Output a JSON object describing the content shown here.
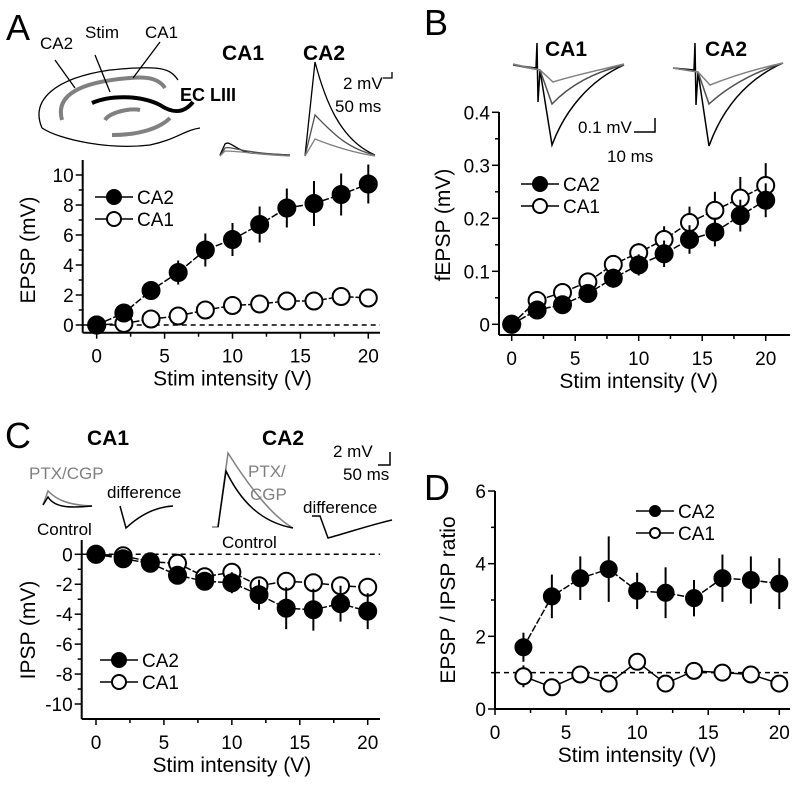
{
  "panels": {
    "A": {
      "letter": "A",
      "schematic": {
        "ca2": "CA2",
        "stim": "Stim",
        "ca1": "CA1",
        "ec": "EC LIII"
      },
      "trace_titles": [
        "CA1",
        "CA2"
      ],
      "scale_v": "2 mV",
      "scale_t": "50 ms"
    },
    "B": {
      "letter": "B",
      "trace_titles": [
        "CA1",
        "CA2"
      ],
      "scale_v": "0.1 mV",
      "scale_t": "10 ms"
    },
    "C": {
      "letter": "C",
      "trace_titles": [
        "CA1",
        "CA2"
      ],
      "scale_v": "2 mV",
      "scale_t": "50 ms",
      "ca1_ptx": "PTX/CGP",
      "ca1_diff": "difference",
      "ca1_control": "Control",
      "ca2_ptx1": "PTX/",
      "ca2_ptx2": "CGP",
      "ca2_diff": "difference",
      "ca2_control": "Control"
    },
    "D": {
      "letter": "D"
    }
  },
  "colors": {
    "black": "#000000",
    "gray": "#808080",
    "darkgray": "#505050"
  },
  "chart_data": [
    {
      "id": "A",
      "type": "line",
      "xlabel": "Stim intensity (V)",
      "ylabel": "EPSP (mV)",
      "xlim": [
        0,
        20
      ],
      "ylim": [
        0,
        10
      ],
      "xticks": [
        0,
        5,
        10,
        15,
        20
      ],
      "yticks": [
        0,
        2,
        4,
        6,
        8,
        10
      ],
      "reference_line": 0,
      "legend": "top-left",
      "x": [
        0,
        2,
        4,
        6,
        8,
        10,
        12,
        14,
        16,
        18,
        20
      ],
      "series": [
        {
          "name": "CA2",
          "filled": true,
          "values": [
            0,
            0.8,
            2.3,
            3.5,
            5.0,
            5.7,
            6.7,
            7.8,
            8.1,
            8.7,
            9.4
          ],
          "err": [
            0,
            0.3,
            0.6,
            0.8,
            1.1,
            1.1,
            1.2,
            1.3,
            1.5,
            1.4,
            1.3
          ]
        },
        {
          "name": "CA1",
          "filled": false,
          "values": [
            0,
            0.1,
            0.4,
            0.6,
            1.0,
            1.3,
            1.4,
            1.6,
            1.6,
            1.9,
            1.8
          ],
          "err": [
            0,
            0.3,
            0.3,
            0.3,
            0.2,
            0.2,
            0.2,
            0.2,
            0.2,
            0.2,
            0.3
          ]
        }
      ]
    },
    {
      "id": "B",
      "type": "line",
      "xlabel": "Stim intensity (V)",
      "ylabel": "fEPSP (mV)",
      "xlim": [
        0,
        20
      ],
      "ylim": [
        0,
        0.4
      ],
      "xticks": [
        0,
        5,
        10,
        15,
        20
      ],
      "yticks": [
        0,
        0.1,
        0.2,
        0.3,
        0.4
      ],
      "legend": "top-left",
      "x": [
        0,
        2,
        4,
        6,
        8,
        10,
        12,
        14,
        16,
        18,
        20
      ],
      "series": [
        {
          "name": "CA2",
          "filled": true,
          "values": [
            0,
            0.027,
            0.037,
            0.058,
            0.087,
            0.112,
            0.133,
            0.16,
            0.174,
            0.205,
            0.234
          ],
          "err": [
            0,
            0.008,
            0.01,
            0.012,
            0.018,
            0.02,
            0.025,
            0.027,
            0.027,
            0.03,
            0.032
          ]
        },
        {
          "name": "CA1",
          "filled": false,
          "values": [
            0,
            0.045,
            0.06,
            0.08,
            0.113,
            0.135,
            0.16,
            0.192,
            0.215,
            0.238,
            0.262
          ],
          "err": [
            0,
            0.01,
            0.01,
            0.012,
            0.015,
            0.018,
            0.025,
            0.03,
            0.035,
            0.04,
            0.042
          ]
        }
      ]
    },
    {
      "id": "C",
      "type": "line",
      "xlabel": "Stim intensity (V)",
      "ylabel": "IPSP  (mV)",
      "xlim": [
        0,
        20
      ],
      "ylim": [
        -10,
        0
      ],
      "xticks": [
        0,
        5,
        10,
        15,
        20
      ],
      "yticks": [
        0,
        -2,
        -4,
        -6,
        -8,
        -10
      ],
      "reference_line": 0,
      "legend": "bottom-left",
      "x": [
        0,
        2,
        4,
        6,
        8,
        10,
        12,
        14,
        16,
        18,
        20
      ],
      "series": [
        {
          "name": "CA2",
          "filled": true,
          "values": [
            0,
            -0.3,
            -0.6,
            -1.4,
            -1.8,
            -1.9,
            -2.7,
            -3.6,
            -3.7,
            -3.3,
            -3.8
          ],
          "err": [
            0,
            0.3,
            0.4,
            0.5,
            0.6,
            0.7,
            1.0,
            1.4,
            1.4,
            1.2,
            1.2
          ]
        },
        {
          "name": "CA1",
          "filled": false,
          "values": [
            0,
            -0.1,
            -0.5,
            -0.6,
            -1.5,
            -1.2,
            -2.1,
            -1.8,
            -1.9,
            -2.1,
            -2.2
          ],
          "err": [
            0,
            0.2,
            0.3,
            0.4,
            0.4,
            0.4,
            0.4,
            0.4,
            0.4,
            0.4,
            0.4
          ]
        }
      ]
    },
    {
      "id": "D",
      "type": "line",
      "xlabel": "Stim intensity (V)",
      "ylabel": "EPSP / IPSP ratio",
      "xlim": [
        0,
        20
      ],
      "ylim": [
        0,
        6
      ],
      "xticks": [
        0,
        5,
        10,
        15,
        20
      ],
      "yticks": [
        0,
        2,
        4,
        6
      ],
      "reference_line": 1,
      "legend": "top-right",
      "x": [
        2,
        4,
        6,
        8,
        10,
        12,
        14,
        16,
        18,
        20
      ],
      "series": [
        {
          "name": "CA2",
          "filled": true,
          "values": [
            1.7,
            3.1,
            3.6,
            3.85,
            3.25,
            3.2,
            3.05,
            3.6,
            3.55,
            3.45
          ],
          "err": [
            0.4,
            0.6,
            0.6,
            0.9,
            0.5,
            0.7,
            0.5,
            0.65,
            0.65,
            0.7
          ]
        },
        {
          "name": "CA1",
          "filled": false,
          "values": [
            0.9,
            0.6,
            0.95,
            0.7,
            1.3,
            0.7,
            1.05,
            1.0,
            0.95,
            0.7
          ],
          "err": [
            0.3,
            0.1,
            0.15,
            0.1,
            0.1,
            0.1,
            0.1,
            0.1,
            0.1,
            0.15
          ]
        }
      ]
    }
  ]
}
